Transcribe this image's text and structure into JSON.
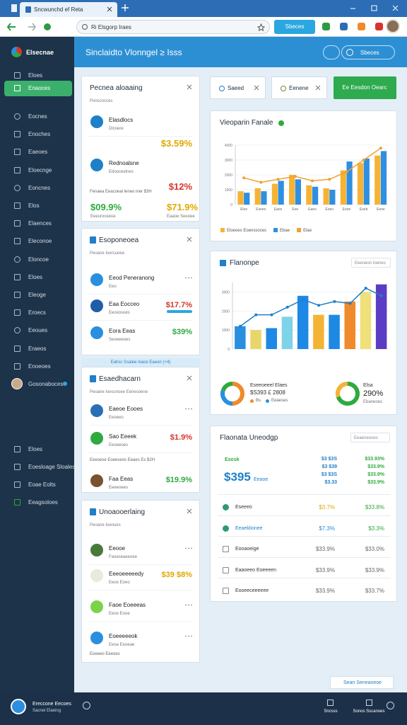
{
  "browser": {
    "tab": "Sncwunchd ef Reta",
    "url": "Ri Elsgorp Iraes",
    "address_button": "Sbeces"
  },
  "sidebar": {
    "brand": "Elsecnae",
    "items": [
      "Eloes",
      "Enaoces",
      "Eocnes",
      "Enoches",
      "Eaeoes",
      "Eloecnge",
      "Eoncnes",
      "Elos",
      "Elaences",
      "Eleconoe",
      "Eloncoe",
      "Eloes",
      "Eleoge",
      "Eroecs",
      "Eeoues",
      "Eraeos",
      "Enoeoes"
    ],
    "user": "Gosonaboces",
    "bottom_items": [
      "Eloes",
      "Eoesloage Sloales",
      "Eoae Eolts",
      "Eeagsoloes"
    ]
  },
  "header": {
    "title": "Sinclaidto Vlonngel ≥ Isss",
    "button": "Sbeces"
  },
  "filters": {
    "chips": [
      "Saeed",
      "Eenene"
    ],
    "action": "Ee Eesdon Oearc"
  },
  "cards": [
    {
      "title": "Pecnea aloaaing",
      "subtitle": "Ponccncces",
      "rows": [
        {
          "name": "Elasdlocs",
          "sub": "Dlcoere",
          "value": "$3.59%",
          "color": "#e0a800"
        },
        {
          "name": "Rednoalsne",
          "sub": "Edooceelnes",
          "value": "$12%",
          "color": "#d9342b"
        }
      ],
      "note": "Fenaea Eeacoeal leneo iner $3H",
      "stats": [
        {
          "value": "$09.9%",
          "sub": "Eeeuroceeue",
          "color": "#2eaa3f"
        },
        {
          "value": "$71.9%",
          "sub": "Eaaoe Seeoee",
          "color": "#e0a800"
        }
      ]
    },
    {
      "title": "Esoponeoea",
      "subtitle": "Peoane Ioercuoee",
      "rows": [
        {
          "name": "Eeod Peneranong",
          "sub": "Eeo"
        },
        {
          "name": "Eaa Eocceo",
          "sub": "Eeceosoes",
          "value": "$17.7%",
          "color": "#d9342b"
        },
        {
          "name": "Eora Eeas",
          "sub": "Seoeeeoes",
          "value": "$39%",
          "color": "#2eaa3f"
        }
      ],
      "banner": "Eahsc Ssalee Ioace Eaeon (+4)"
    },
    {
      "title": "Esaedhacarn",
      "subtitle": "Peoane Ioescnoee Eenesoene",
      "rows": [
        {
          "name": "Eaeoe Eooes",
          "sub": "Eeoeeo"
        },
        {
          "name": "Sao Eeeek",
          "sub": "Eeoeeoes",
          "value": "$1.9%",
          "color": "#d9342b"
        },
        {
          "name": "Faa Eeas",
          "sub": "Eeeeoees",
          "value": "$19.9%",
          "color": "#2eaa3f"
        }
      ],
      "note": "Eeeoese Eoeeseos Eeaes Es $2H"
    },
    {
      "title": "Unoaooerlaing",
      "subtitle": "Peoane Ioenues",
      "rows": [
        {
          "name": "Eeooe",
          "sub": "Faoeseaeeoee"
        },
        {
          "name": "Eeeoeeeeedy",
          "sub": "Eeoo Eoeo",
          "value": "$39 $8%",
          "color": "#e0a800"
        },
        {
          "name": "Faoe Eoeeeas",
          "sub": "Eeoo Eooe"
        },
        {
          "name": "Eoeeeeeok",
          "sub": "Eeoa Eeoeae"
        }
      ],
      "note": "Eoeeeo Eeeoes"
    }
  ],
  "chart_data": [
    {
      "type": "bar",
      "title": "Vieoparin Fanale",
      "categories": [
        "Eloe",
        "Eseeo",
        "Eaes",
        "Eoe",
        "Eaeo",
        "Eoeo",
        "Eooe",
        "Eoeb",
        "Eeoe"
      ],
      "series": [
        {
          "name": "Eloeoes Eoenssoces",
          "color": "#f5b335",
          "values": [
            900,
            1100,
            1400,
            2000,
            1300,
            1100,
            2300,
            2800,
            3300
          ]
        },
        {
          "name": "Ebae",
          "color": "#2f8fe0",
          "values": [
            800,
            900,
            1600,
            1700,
            1200,
            1000,
            2900,
            3100,
            3600
          ]
        },
        {
          "name": "Elae",
          "type": "line",
          "color": "#f0a030",
          "values": [
            1800,
            1500,
            1700,
            1900,
            1600,
            1700,
            2200,
            3000,
            3800
          ]
        }
      ],
      "ylim": [
        0,
        4000
      ],
      "yticks": [
        0,
        1000,
        2000,
        3000,
        4000
      ],
      "grid": true
    },
    {
      "type": "bar",
      "title": "Flanonpe",
      "dropdown": "Eeeneon Ioenes",
      "series": [
        {
          "name": "Eeeoe",
          "colors": [
            "#2a8fde",
            "#e8d66a",
            "#1e88e5",
            "#7fd3e8",
            "#1e88e5",
            "#f5b335",
            "#1e88e5",
            "#f08a2a",
            "#f0e07a",
            "#5b3cc4"
          ],
          "values": [
            1200,
            1000,
            1100,
            1700,
            2800,
            1800,
            1800,
            2500,
            3000,
            3400
          ]
        },
        {
          "name": "Eeos",
          "type": "line",
          "color": "#1f7fc9",
          "values": [
            1200,
            1800,
            1800,
            2200,
            2600,
            2300,
            2500,
            2400,
            3200,
            2800
          ]
        }
      ],
      "ylim": [
        0,
        3500
      ],
      "yticks": [
        0,
        1000,
        2000,
        3000
      ],
      "grid": true
    },
    {
      "type": "pie",
      "donut": true,
      "title": "Eseeoeeel Elaes",
      "subtitle": "$S393 £ 2808",
      "legend": [
        "Bs",
        "Eeaeses"
      ],
      "values": [
        50,
        30,
        20
      ],
      "colors": [
        "#f08a2a",
        "#2a8fde",
        "#2eaa3f"
      ]
    },
    {
      "type": "pie",
      "donut": true,
      "title": "Elsa",
      "subtitle": "290%",
      "note": "Ebaneoes",
      "values": [
        70,
        30
      ],
      "colors": [
        "#2eaa3f",
        "#f5b335"
      ]
    }
  ],
  "table": {
    "title": "Flaonata Uneodgp",
    "dropdown": "Eeaeneoceo",
    "label": "Esosk",
    "total": "$395",
    "tag": "Eeaoe",
    "col_a": [
      "$3 $3S",
      "$3 $39",
      "$3 $3S",
      "$3.33"
    ],
    "col_b": [
      "$33.93%",
      "$33.9%",
      "$33.9%",
      "$33.9%"
    ],
    "rows": [
      {
        "name": "Eseeeo",
        "a": "$3.7%",
        "b": "$33.8%",
        "color": "#e0a800"
      },
      {
        "name": "Eeaeklionee",
        "a": "$7.3%",
        "b": "$3.3%",
        "color": "#2a8fde"
      },
      {
        "name": "Eooaoeige",
        "a": "$33.9%",
        "b": "$33.0%"
      },
      {
        "name": "Eaaoeeo Eoeeeen",
        "a": "$33.9%",
        "b": "$33.9%"
      },
      {
        "name": "Eooeeceeeeee",
        "a": "$33.9%",
        "b": "$33.7%"
      }
    ]
  },
  "footer": {
    "app": "Ereccone Eecoes",
    "app_sub": "Sacnei Elaeing",
    "left_action": "Sncsss",
    "right_action": "Sonos Sscanoes",
    "content_button": "Sean Seneaneoe"
  }
}
